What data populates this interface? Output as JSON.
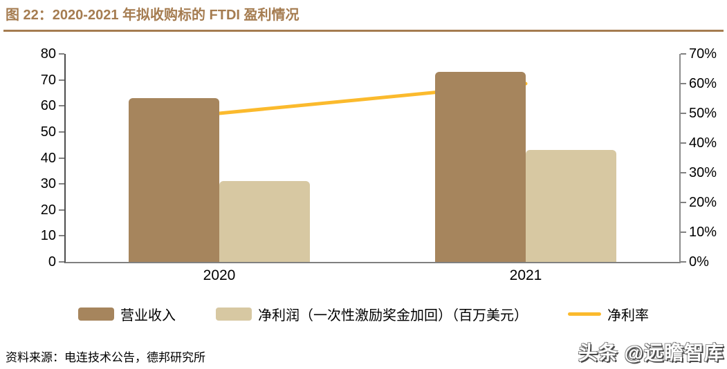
{
  "title": "图 22：2020-2021 年拟收购标的 FTDI 盈利情况",
  "source": "资料来源：电连技术公告，德邦研究所",
  "watermark": "头条 @远瞻智库",
  "colors": {
    "title_brown": "#A57C50",
    "revenue_bar": "#A6855D",
    "net_profit_bar": "#D7C8A2",
    "net_margin_line": "#FBBA2D",
    "axis_gray": "#808080"
  },
  "chart_data": {
    "type": "bar",
    "title": "图 22：2020-2021 年拟收购标的 FTDI 盈利情况",
    "categories": [
      "2020",
      "2021"
    ],
    "series": [
      {
        "key": "revenue",
        "name": "营业收入",
        "type": "bar",
        "axis": "left",
        "color": "#A6855D",
        "values": [
          63,
          73
        ]
      },
      {
        "key": "net-profit",
        "name": "净利润（一次性激励奖金加回）（百万美元）",
        "type": "bar",
        "axis": "left",
        "color": "#D7C8A2",
        "values": [
          31,
          43
        ]
      },
      {
        "key": "net-margin",
        "name": "净利率",
        "type": "line",
        "axis": "right",
        "color": "#FBBA2D",
        "unit": "%",
        "values": [
          50,
          60
        ]
      }
    ],
    "left_axis": {
      "min": 0,
      "max": 80,
      "step": 10,
      "ticks": [
        "0",
        "10",
        "20",
        "30",
        "40",
        "50",
        "60",
        "70",
        "80"
      ]
    },
    "right_axis": {
      "min": 0,
      "max": 70,
      "step": 10,
      "ticks": [
        "0%",
        "10%",
        "20%",
        "30%",
        "40%",
        "50%",
        "60%",
        "70%"
      ]
    },
    "legend_position": "bottom",
    "grid": false
  }
}
